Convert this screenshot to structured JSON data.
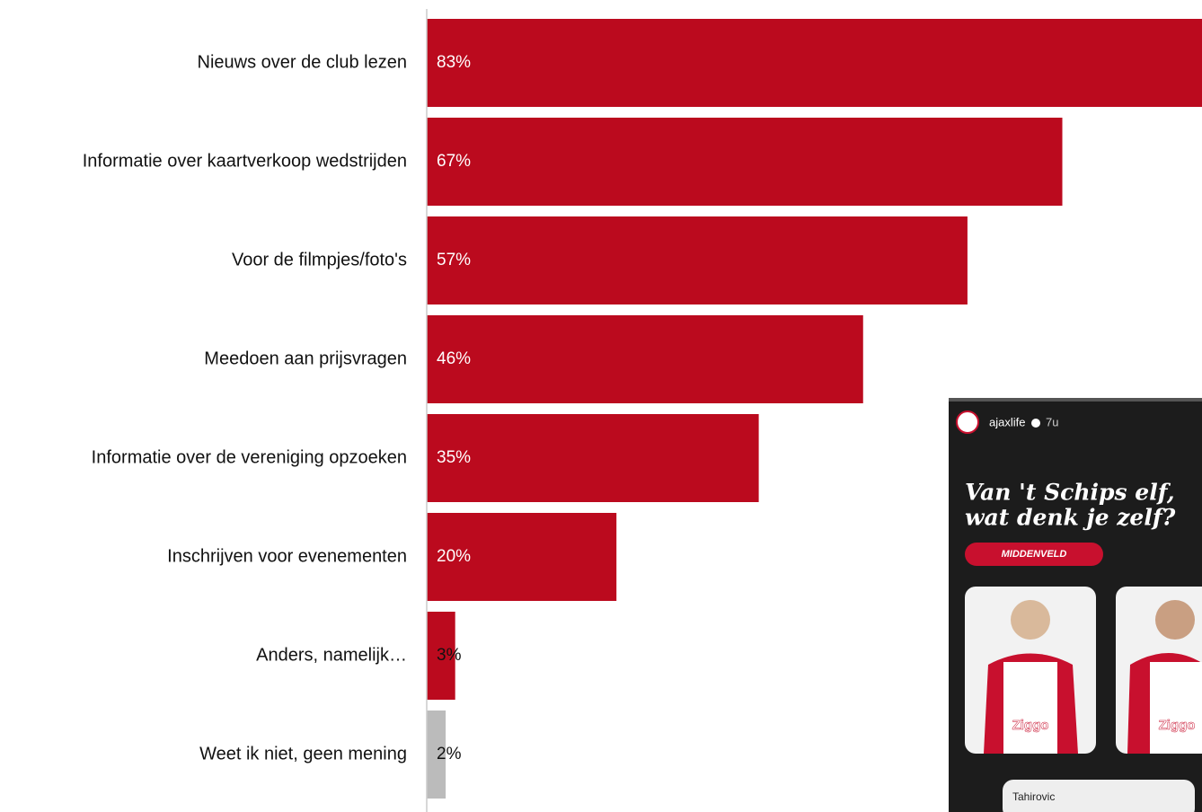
{
  "chart_data": {
    "type": "hbar",
    "categories": [
      "Nieuws over de club lezen",
      "Informatie over kaartverkoop wedstrijden",
      "Voor de filmpjes/foto's",
      "Meedoen aan prijsvragen",
      "Informatie over de vereniging opzoeken",
      "Inschrijven voor evenementen",
      "Anders, namelijk…",
      "Weet ik niet, geen mening"
    ],
    "values": [
      83,
      67,
      57,
      46,
      35,
      20,
      3,
      2
    ],
    "value_labels": [
      "83%",
      "67%",
      "57%",
      "46%",
      "35%",
      "20%",
      "3%",
      "2%"
    ],
    "colors": [
      "#bb0a1e",
      "#bb0a1e",
      "#bb0a1e",
      "#bb0a1e",
      "#bb0a1e",
      "#bb0a1e",
      "#bb0a1e",
      "#bbbbbb"
    ]
  },
  "overlay": {
    "account": "ajaxlife",
    "time": "7u",
    "headline_1": "Van 't Schips elf,",
    "headline_2": "wat denk je zelf?",
    "tag": "MIDDENVELD",
    "answer": "Tahirovic",
    "sponsor_1": "Ziggo",
    "sponsor_2": "Ziggo"
  }
}
